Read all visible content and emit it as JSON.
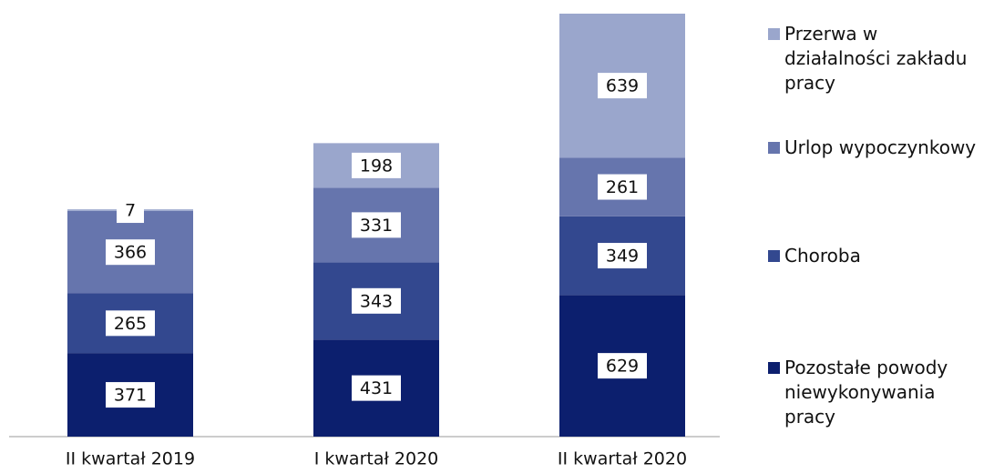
{
  "chart_data": {
    "type": "stacked-bar",
    "categories": [
      "II kwartał 2019",
      "I kwartał 2020",
      "II kwartał 2020"
    ],
    "series": [
      {
        "name": "Pozostałe powody niewykonywania pracy",
        "color": "#0c1f6e",
        "values": [
          371,
          431,
          629
        ]
      },
      {
        "name": "Choroba",
        "color": "#33488f",
        "values": [
          265,
          343,
          349
        ]
      },
      {
        "name": "Urlop wypoczynkowy",
        "color": "#6675ad",
        "values": [
          366,
          331,
          261
        ]
      },
      {
        "name": "Przerwa w działalności zakładu pracy",
        "color": "#9aa6cc",
        "values": [
          7,
          198,
          639
        ]
      }
    ]
  }
}
